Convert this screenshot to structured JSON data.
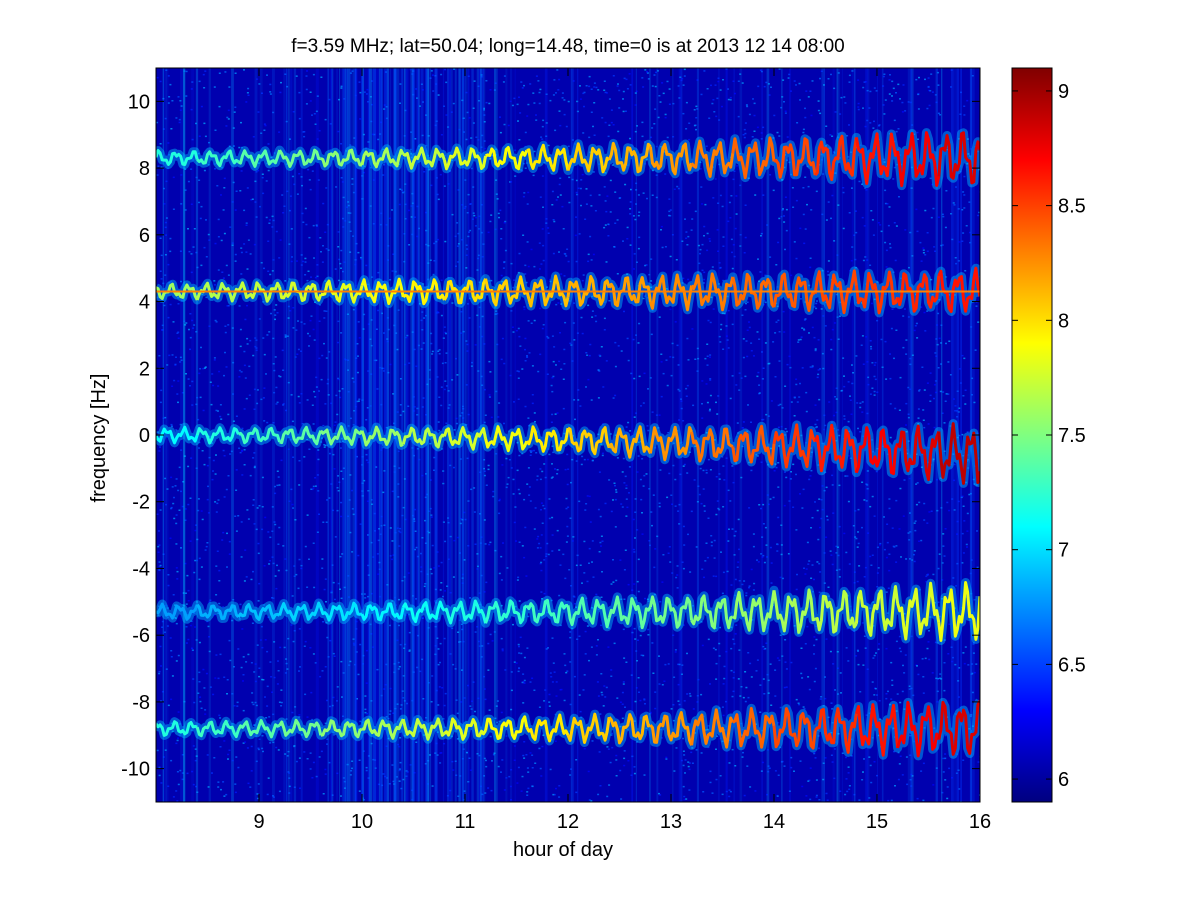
{
  "chart_data": {
    "type": "heatmap",
    "title": "f=3.59 MHz;  lat=50.04; long=14.48, time=0 is at 2013 12 14 08:00",
    "xlabel": "hour of day",
    "ylabel": "frequency [Hz]",
    "xlim": [
      8,
      16
    ],
    "ylim": [
      -11,
      11
    ],
    "x_ticks": [
      9,
      10,
      11,
      12,
      13,
      14,
      15,
      16
    ],
    "x_tick_labels": [
      "9",
      "10",
      "11",
      "12",
      "13",
      "14",
      "15",
      "16"
    ],
    "y_ticks": [
      -10,
      -8,
      -6,
      -4,
      -2,
      0,
      2,
      4,
      6,
      8,
      10
    ],
    "y_tick_labels": [
      "-10",
      "-8",
      "-6",
      "-4",
      "-2",
      "0",
      "2",
      "4",
      "6",
      "8",
      "10"
    ],
    "colorbar": {
      "colormap": "jet",
      "range": [
        5.9,
        9.1
      ],
      "ticks": [
        6,
        6.5,
        7,
        7.5,
        8,
        8.5,
        9
      ],
      "tick_labels": [
        "6",
        "6.5",
        "7",
        "7.5",
        "8",
        "8.5",
        "9"
      ]
    },
    "background_level": 6.05,
    "traces": [
      {
        "center": 8.3,
        "level_start": 7.2,
        "level_end": 8.9
      },
      {
        "center": 4.3,
        "level_start": 7.6,
        "level_end": 8.7
      },
      {
        "center": 0.0,
        "level_start": 7.1,
        "level_end": 9.0
      },
      {
        "center": -5.3,
        "level_start": 6.8,
        "level_end": 7.9
      },
      {
        "center": -8.8,
        "level_start": 7.2,
        "level_end": 8.9
      }
    ],
    "grid": false
  }
}
